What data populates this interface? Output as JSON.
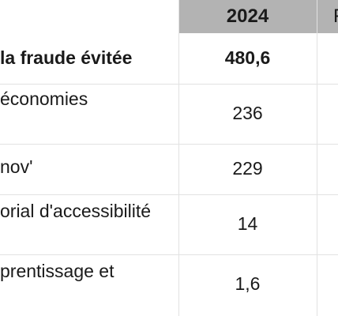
{
  "table": {
    "header": {
      "year": "2024",
      "next_col_partial": "F"
    },
    "rows": [
      {
        "label": "la fraude évitée",
        "value": "480,6",
        "bold": true
      },
      {
        "label": "économies",
        "value": "236"
      },
      {
        "label": "nov'",
        "value": "229"
      },
      {
        "label": "orial d'accessibilité",
        "value": "14"
      },
      {
        "label": "prentissage et",
        "value": "1,6"
      }
    ]
  }
}
